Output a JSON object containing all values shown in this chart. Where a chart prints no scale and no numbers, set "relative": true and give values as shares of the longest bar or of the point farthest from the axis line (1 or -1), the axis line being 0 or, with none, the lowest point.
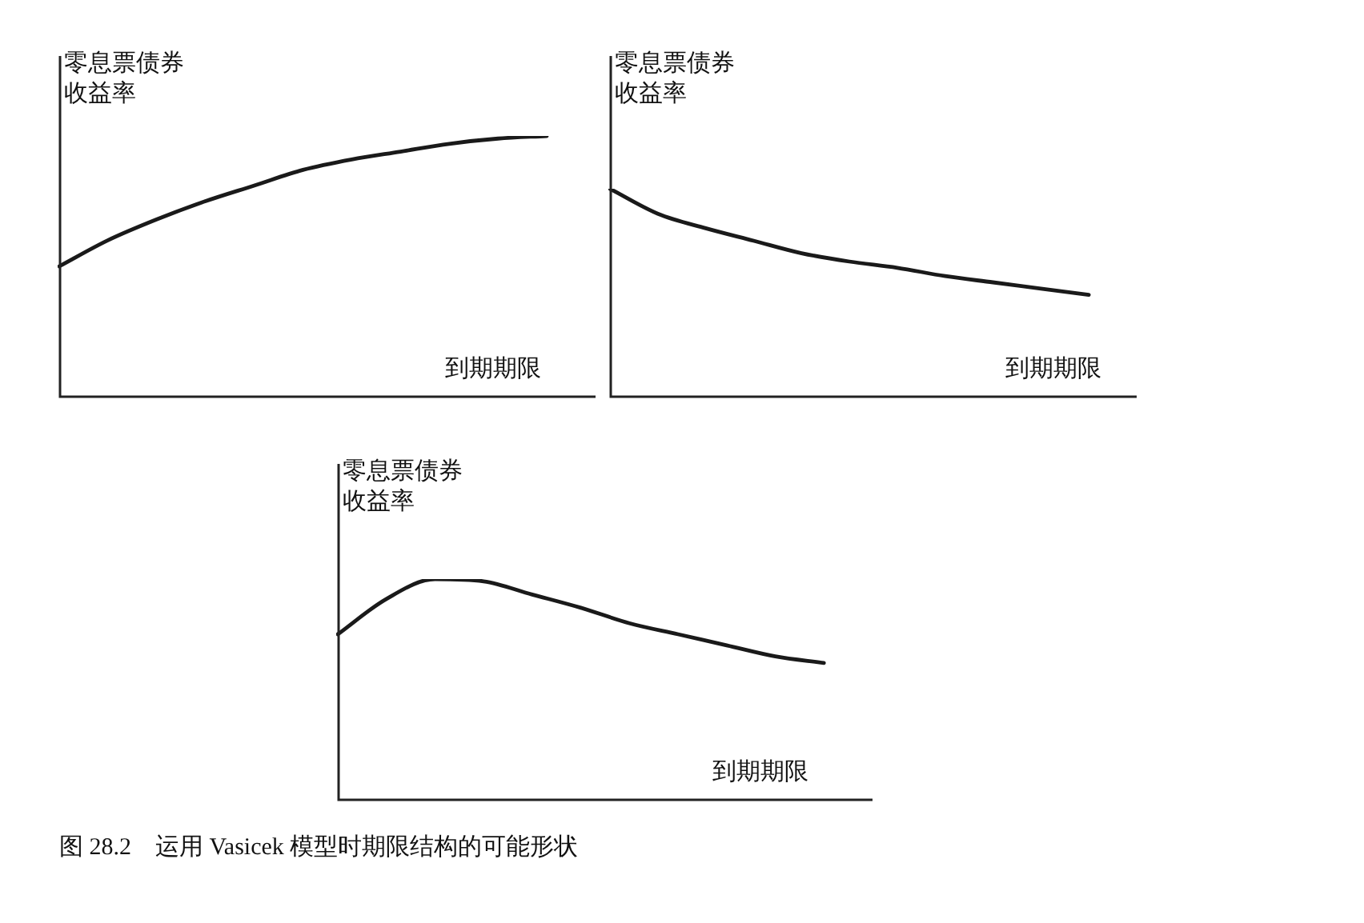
{
  "chart_data": [
    {
      "type": "line",
      "ylabel": "零息票债券收益率",
      "xlabel": "到期期限",
      "relative": true,
      "color": "#1a1a1a",
      "categories": [
        null,
        null,
        null,
        null,
        null,
        null,
        null,
        null,
        null,
        null,
        null,
        null
      ],
      "values": [
        0.5,
        0.6,
        0.68,
        0.75,
        0.81,
        0.87,
        0.91,
        0.94,
        0.97,
        0.99,
        1,
        null
      ],
      "marker": "none",
      "legend": false
    },
    {
      "type": "line",
      "ylabel": "零息票债券收益率",
      "xlabel": "到期期限",
      "relative": true,
      "color": "#1a1a1a",
      "categories": [
        null,
        null,
        null,
        null,
        null,
        null,
        null,
        null,
        null,
        null,
        null,
        null
      ],
      "values": [
        1,
        0.88,
        0.81,
        0.75,
        0.69,
        0.65,
        0.62,
        0.58,
        0.55,
        0.52,
        0.49,
        null
      ],
      "marker": "none",
      "legend": false
    },
    {
      "type": "line",
      "ylabel": "零息票债券收益率",
      "xlabel": "到期期限",
      "relative": true,
      "color": "#1a1a1a",
      "categories": [
        null,
        null,
        null,
        null,
        null,
        null,
        null,
        null,
        null,
        null,
        null,
        null
      ],
      "values": [
        0.75,
        0.91,
        1,
        0.99,
        0.93,
        0.87,
        0.8,
        0.75,
        0.7,
        0.65,
        0.62,
        null
      ],
      "marker": "none",
      "legend": false,
      "annotations": [
        "图 28.2　运用 Vasicek 模型时期限结构的可能形状"
      ]
    }
  ]
}
